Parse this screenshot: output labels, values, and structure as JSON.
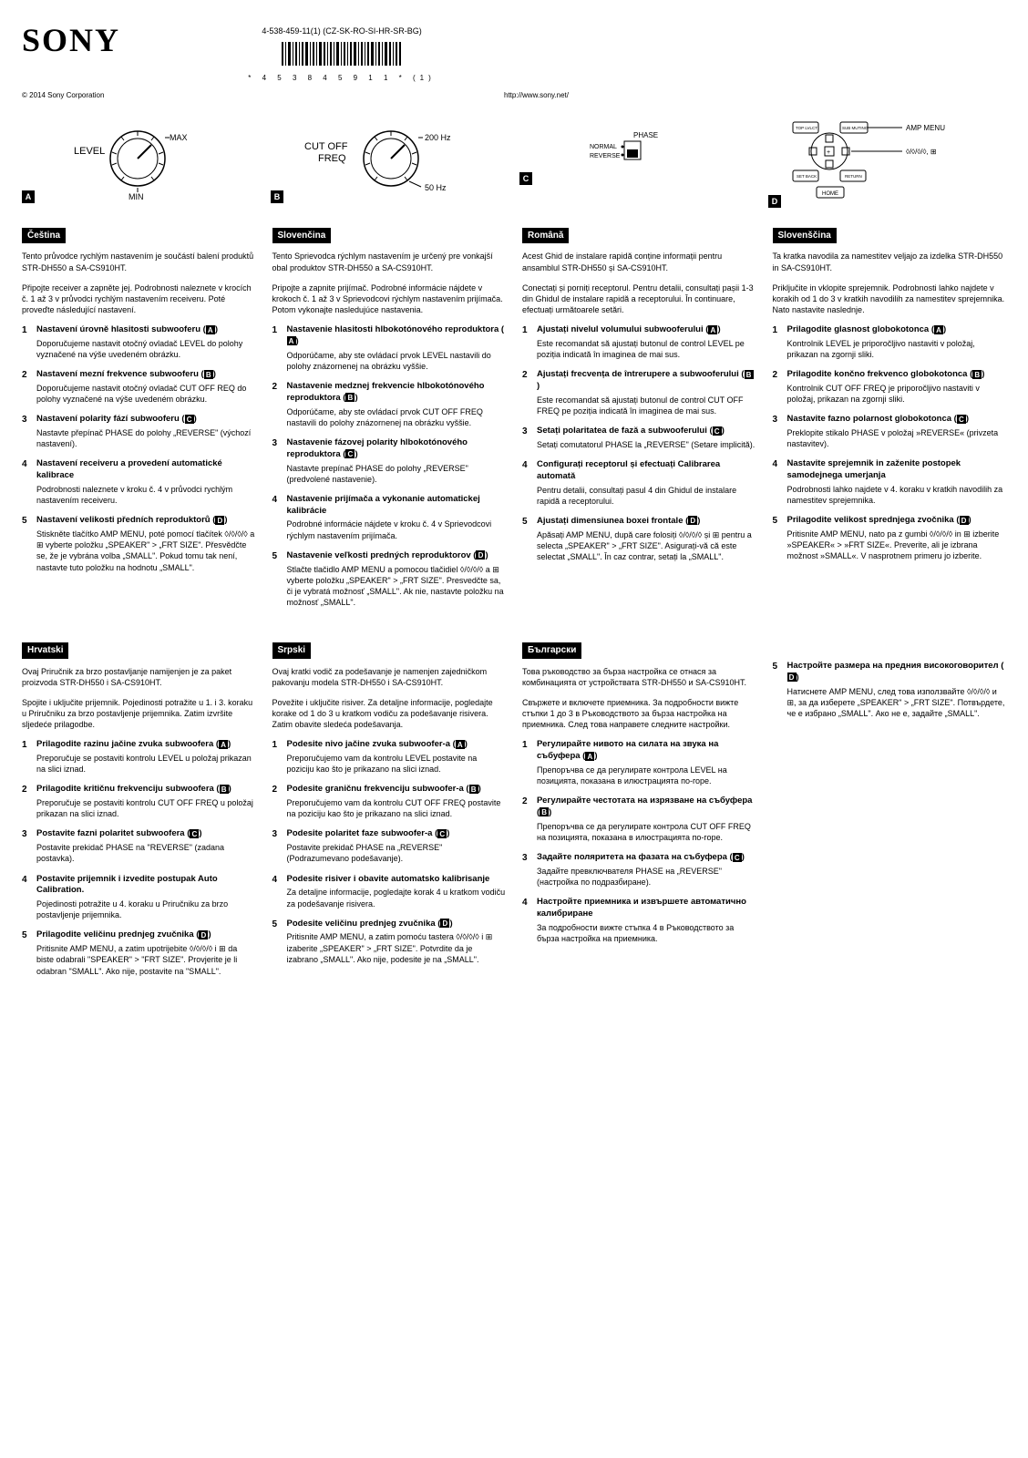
{
  "header": {
    "brand": "SONY",
    "model_line": "4-538-459-11(1) (CZ-SK-RO-SI-HR-SR-BG)",
    "barcode_digits": "* 4 5 3 8 4 5 9 1 1 * (1)",
    "copyright": "© 2014 Sony Corporation",
    "url": "http://www.sony.net/"
  },
  "diagrams": {
    "A": {
      "title": "LEVEL",
      "top": "MAX",
      "bottom": "MIN"
    },
    "B": {
      "title": "CUT OFF FREQ",
      "top": "200 Hz",
      "bottom": "50 Hz"
    },
    "C": {
      "label_phase": "PHASE",
      "label_normal": "NORMAL",
      "label_reverse": "REVERSE"
    },
    "D": {
      "amp_menu": "AMP MENU",
      "home": "HOME",
      "btn_tl": "TOP LVLCT",
      "btn_tr": "SUB MUTING",
      "btn_bl": "SET BACK",
      "btn_br": "RETURN"
    }
  },
  "langs": {
    "cs": {
      "name": "Čeština",
      "intro": "Tento průvodce rychlým nastavením je součástí balení produktů STR-DH550 a SA-CS910HT.",
      "intro2": "Připojte receiver a zapněte jej. Podrobnosti naleznete v krocích č. 1 až 3 v průvodci rychlým nastavením receiveru. Poté proveďte následující nastavení.",
      "steps": [
        {
          "title": "Nastavení úrovně hlasitosti subwooferu (",
          "ref": "A",
          "after_ref": ")",
          "body": "Doporučujeme nastavit otočný ovladač LEVEL do polohy vyznačené na výše uvedeném obrázku."
        },
        {
          "title": "Nastavení mezní frekvence subwooferu (",
          "ref": "B",
          "after_ref": ")",
          "body": "Doporučujeme nastavit otočný ovladač CUT OFF REQ do polohy vyznačené na výše uvedeném obrázku."
        },
        {
          "title": "Nastavení polarity fází subwooferu (",
          "ref": "C",
          "after_ref": ")",
          "body": "Nastavte přepínač PHASE do polohy „REVERSE\" (výchozí nastavení)."
        },
        {
          "title": "Nastavení receiveru a provedení automatické kalibrace",
          "ref": "",
          "after_ref": "",
          "body": "Podrobnosti naleznete v kroku č. 4 v průvodci rychlým nastavením receiveru."
        },
        {
          "title": "Nastavení velikosti předních reproduktorů (",
          "ref": "D",
          "after_ref": ")",
          "body": "Stiskněte tlačítko AMP MENU, poté pomocí tlačítek ◊/◊/◊/◊ a ⊞ vyberte položku „SPEAKER\" > „FRT SIZE\". Přesvědčte se, že je vybrána volba „SMALL\". Pokud tomu tak není, nastavte tuto položku na hodnotu „SMALL\"."
        }
      ]
    },
    "sk": {
      "name": "Slovenčina",
      "intro": "Tento Sprievodca rýchlym nastavením je určený pre vonkajší obal produktov STR-DH550 a SA-CS910HT.",
      "intro2": "Pripojte a zapnite prijímač. Podrobné informácie nájdete v krokoch č. 1 až 3 v Sprievodcovi rýchlym nastavením prijímača. Potom vykonajte nasledujúce nastavenia.",
      "steps": [
        {
          "title": "Nastavenie hlasitosti hlbokotónového reproduktora (",
          "ref": "A",
          "after_ref": ")",
          "body": "Odporúčame, aby ste ovládací prvok LEVEL nastavili do polohy znázornenej na obrázku vyššie."
        },
        {
          "title": "Nastavenie medznej frekvencie hlbokotónového reproduktora (",
          "ref": "B",
          "after_ref": ")",
          "body": "Odporúčame, aby ste ovládací prvok CUT OFF FREQ nastavili do polohy znázornenej na obrázku vyššie."
        },
        {
          "title": "Nastavenie fázovej polarity hlbokotónového reproduktora (",
          "ref": "C",
          "after_ref": ")",
          "body": "Nastavte prepínač PHASE do polohy „REVERSE\" (predvolené nastavenie)."
        },
        {
          "title": "Nastavenie prijímača a vykonanie automatickej kalibrácie",
          "ref": "",
          "after_ref": "",
          "body": "Podrobné informácie nájdete v kroku č. 4 v Sprievodcovi rýchlym nastavením prijímača."
        },
        {
          "title": "Nastavenie veľkosti predných reproduktorov (",
          "ref": "D",
          "after_ref": ")",
          "body": "Stlačte tlačidlo AMP MENU a pomocou tlačidiel ◊/◊/◊/◊ a ⊞ vyberte položku „SPEAKER\" > „FRT SIZE\". Presvedčte sa, či je vybratá možnosť „SMALL\". Ak nie, nastavte položku na možnosť „SMALL\"."
        }
      ]
    },
    "ro": {
      "name": "Română",
      "intro": "Acest Ghid de instalare rapidă conține informații pentru ansamblul STR-DH550 și SA-CS910HT.",
      "intro2": "Conectați și porniți receptorul. Pentru detalii, consultați pașii 1-3 din Ghidul de instalare rapidă a receptorului. În continuare, efectuați următoarele setări.",
      "steps": [
        {
          "title": "Ajustați nivelul volumului subwooferului (",
          "ref": "A",
          "after_ref": ")",
          "body": "Este recomandat să ajustați butonul de control LEVEL pe poziția indicată în imaginea de mai sus."
        },
        {
          "title": "Ajustați frecvența de întrerupere a subwooferului (",
          "ref": "B",
          "after_ref": ")",
          "body": "Este recomandat să ajustați butonul de control CUT OFF FREQ pe poziția indicată în imaginea de mai sus."
        },
        {
          "title": "Setați polaritatea de fază a subwooferului (",
          "ref": "C",
          "after_ref": ")",
          "body": "Setați comutatorul PHASE la „REVERSE\" (Setare implicită)."
        },
        {
          "title": "Configurați receptorul și efectuați Calibrarea automată",
          "ref": "",
          "after_ref": "",
          "body": "Pentru detalii, consultați pasul 4 din Ghidul de instalare rapidă a receptorului."
        },
        {
          "title": "Ajustați dimensiunea boxei frontale (",
          "ref": "D",
          "after_ref": ")",
          "body": "Apăsați AMP MENU, după care folosiți ◊/◊/◊/◊ și ⊞ pentru a selecta „SPEAKER\" > „FRT SIZE\". Asigurați-vă că este selectat „SMALL\". În caz contrar, setați la „SMALL\"."
        }
      ]
    },
    "sl": {
      "name": "Slovenščina",
      "intro": "Ta kratka navodila za namestitev veljajo za izdelka STR-DH550 in SA-CS910HT.",
      "intro2": "Priključite in vklopite sprejemnik. Podrobnosti lahko najdete v korakih od 1 do 3 v kratkih navodilih za namestitev sprejemnika. Nato nastavite naslednje.",
      "steps": [
        {
          "title": "Prilagodite glasnost globokotonca (",
          "ref": "A",
          "after_ref": ")",
          "body": "Kontrolnik LEVEL je priporočljivo nastaviti v položaj, prikazan na zgornji sliki."
        },
        {
          "title": "Prilagodite končno frekvenco globokotonca (",
          "ref": "B",
          "after_ref": ")",
          "body": "Kontrolnik CUT OFF FREQ je priporočljivo nastaviti v položaj, prikazan na zgornji sliki."
        },
        {
          "title": "Nastavite fazno polarnost globokotonca (",
          "ref": "C",
          "after_ref": ")",
          "body": "Preklopite stikalo PHASE v položaj »REVERSE« (privzeta nastavitev)."
        },
        {
          "title": "Nastavite sprejemnik in zaženite postopek samodejnega umerjanja",
          "ref": "",
          "after_ref": "",
          "body": "Podrobnosti lahko najdete v 4. koraku v kratkih navodilih za namestitev sprejemnika."
        },
        {
          "title": "Prilagodite velikost sprednjega zvočnika (",
          "ref": "D",
          "after_ref": ")",
          "body": "Pritisnite AMP MENU, nato pa z gumbi ◊/◊/◊/◊ in ⊞ izberite »SPEAKER« > »FRT SIZE«. Preverite, ali je izbrana možnost »SMALL«. V nasprotnem primeru jo izberite."
        }
      ]
    },
    "hr": {
      "name": "Hrvatski",
      "intro": "Ovaj Priručnik za brzo postavljanje namijenjen je za paket proizvoda STR-DH550 i SA-CS910HT.",
      "intro2": "Spojite i uključite prijemnik. Pojedinosti potražite u 1. i 3. koraku u Priručniku za brzo postavljenje prijemnika. Zatim izvršite sljedeće prilagodbe.",
      "steps": [
        {
          "title": "Prilagodite razinu jačine zvuka subwoofera (",
          "ref": "A",
          "after_ref": ")",
          "body": "Preporučuje se postaviti kontrolu LEVEL u položaj prikazan na slici iznad."
        },
        {
          "title": "Prilagodite kritičnu frekvenciju subwoofera (",
          "ref": "B",
          "after_ref": ")",
          "body": "Preporučuje se postaviti kontrolu CUT OFF FREQ u položaj prikazan na slici iznad."
        },
        {
          "title": "Postavite fazni polaritet subwoofera (",
          "ref": "C",
          "after_ref": ")",
          "body": "Postavite prekidač PHASE na \"REVERSE\" (zadana postavka)."
        },
        {
          "title": "Postavite prijemnik i izvedite postupak Auto Calibration.",
          "ref": "",
          "after_ref": "",
          "body": "Pojedinosti potražite u 4. koraku u Priručniku za brzo postavljenje prijemnika."
        },
        {
          "title": "Prilagodite veličinu prednjeg zvučnika (",
          "ref": "D",
          "after_ref": ")",
          "body": "Pritisnite AMP MENU, a zatim upotrijebite ◊/◊/◊/◊ i ⊞ da biste odabrali \"SPEAKER\" > \"FRT SIZE\". Provjerite je li odabran \"SMALL\". Ako nije, postavite na \"SMALL\"."
        }
      ]
    },
    "sr": {
      "name": "Srpski",
      "intro": "Ovaj kratki vodič za podešavanje je namenjen zajedničkom pakovanju modela STR-DH550 i SA-CS910HT.",
      "intro2": "Povežite i uključite risiver. Za detaljne informacije, pogledajte korake od 1 do 3 u kratkom vodiču za podešavanje risivera. Zatim obavite sledeća podešavanja.",
      "steps": [
        {
          "title": "Podesite nivo jačine zvuka subwoofer-a (",
          "ref": "A",
          "after_ref": ")",
          "body": "Preporučujemo vam da kontrolu LEVEL postavite na poziciju kao što je prikazano na slici iznad."
        },
        {
          "title": "Podesite graničnu frekvenciju subwoofer-a (",
          "ref": "B",
          "after_ref": ")",
          "body": "Preporučujemo vam da kontrolu CUT OFF FREQ postavite na poziciju kao što je prikazano na slici iznad."
        },
        {
          "title": "Podesite polaritet faze subwoofer-a (",
          "ref": "C",
          "after_ref": ")",
          "body": "Postavite prekidač PHASE na „REVERSE\" (Podrazumevano podešavanje)."
        },
        {
          "title": "Podesite risiver i obavite automatsko kalibrisanje",
          "ref": "",
          "after_ref": "",
          "body": "Za detaljne informacije, pogledajte korak 4 u kratkom vodiču za podešavanje risivera."
        },
        {
          "title": "Podesite veličinu prednjeg zvučnika (",
          "ref": "D",
          "after_ref": ")",
          "body": "Pritisnite AMP MENU, a zatim pomoću tastera ◊/◊/◊/◊ i ⊞ izaberite „SPEAKER\" > „FRT SIZE\". Potvrdite da je izabrano „SMALL\". Ako nije, podesite je na „SMALL\"."
        }
      ]
    },
    "bg": {
      "name": "Български",
      "intro": "Това ръководство за бърза настройка се отнася за комбинацията от устройствата STR-DH550 и SA-CS910HT.",
      "intro2": "Свържете и включете приемника. За подробности вижте стъпки 1 до 3 в Ръководството за бърза настройка на приемника. След това направете следните настройки.",
      "steps": [
        {
          "title": "Регулирайте нивото на силата на звука на събуфера (",
          "ref": "A",
          "after_ref": ")",
          "body": "Препоръчва се да регулирате контрола LEVEL на позицията, показана в илюстрацията по-горе."
        },
        {
          "title": "Регулирайте честотата на изрязване на събуфера (",
          "ref": "B",
          "after_ref": ")",
          "body": "Препоръчва се да регулирате контрола CUT OFF FREQ на позицията, показана в илюстрацията по-горе."
        },
        {
          "title": "Задайте поляритета на фазата на събуфера (",
          "ref": "C",
          "after_ref": ")",
          "body": "Задайте превключвателя PHASE на „REVERSE\" (настройка по подразбиране)."
        },
        {
          "title": "Настройте приемника и извършете автоматично калибриране",
          "ref": "",
          "after_ref": "",
          "body": "За подробности вижте стъпка 4 в Ръководството за бърза настройка на приемника."
        }
      ]
    },
    "bg_extra": {
      "title": "Настройте размера на предния високоговорител (",
      "ref": "D",
      "after_ref": ")",
      "body": "Натиснете AMP MENU, след това използвайте ◊/◊/◊/◊ и ⊞, за да изберете „SPEAKER\" > „FRT SIZE\". Потвърдете, че е избрано „SMALL\". Ако не е, задайте „SMALL\"."
    }
  }
}
